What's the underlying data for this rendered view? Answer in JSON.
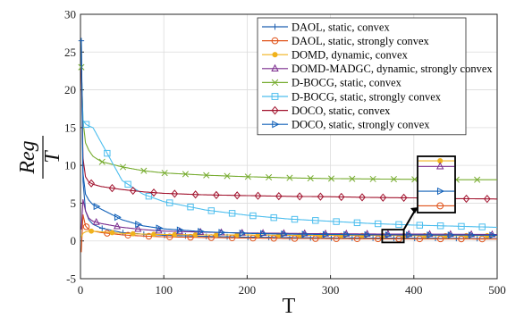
{
  "chart_data": {
    "type": "line",
    "xlabel": "T",
    "ylabel_numerator": "Reg",
    "ylabel_denominator": "T",
    "xlim": [
      0,
      500
    ],
    "ylim": [
      -5,
      30
    ],
    "x_ticks": [
      0,
      100,
      200,
      300,
      400,
      500
    ],
    "y_ticks": [
      -5,
      0,
      5,
      10,
      15,
      20,
      25,
      30
    ],
    "grid": true,
    "legend_position": "top-right",
    "series": [
      {
        "name": "DAOL, static, convex",
        "color": "#1f5fb0",
        "marker": "plus",
        "x": [
          1,
          3,
          6,
          10,
          15,
          25,
          50,
          75,
          100,
          150,
          200,
          250,
          300,
          350,
          400,
          450,
          500
        ],
        "y": [
          26.5,
          8,
          4,
          2.8,
          2.2,
          1.7,
          1.1,
          0.9,
          0.75,
          0.6,
          0.5,
          0.45,
          0.4,
          0.38,
          0.35,
          0.33,
          0.3
        ]
      },
      {
        "name": "DAOL, static, strongly convex",
        "color": "#e0531a",
        "marker": "circle",
        "x": [
          1,
          3,
          6,
          10,
          15,
          25,
          50,
          75,
          100,
          150,
          200,
          250,
          300,
          350,
          400,
          450,
          500
        ],
        "y": [
          -1.5,
          3.5,
          2,
          1.5,
          1.3,
          1.1,
          0.8,
          0.65,
          0.55,
          0.45,
          0.38,
          0.33,
          0.3,
          0.28,
          0.27,
          0.26,
          0.25
        ]
      },
      {
        "name": "DOMD, dynamic, convex",
        "color": "#f0b21c",
        "marker": "dot",
        "x": [
          1,
          3,
          6,
          10,
          15,
          25,
          50,
          75,
          100,
          150,
          200,
          250,
          300,
          350,
          400,
          450,
          500
        ],
        "y": [
          0.5,
          1.0,
          1.2,
          1.3,
          1.3,
          1.2,
          1.0,
          0.9,
          0.85,
          0.8,
          0.78,
          0.75,
          0.73,
          0.72,
          0.7,
          0.7,
          0.7
        ]
      },
      {
        "name": "DOMD-MADGC, dynamic, strongly convex",
        "color": "#7b2d8e",
        "marker": "triangle-up",
        "x": [
          1,
          3,
          6,
          10,
          15,
          25,
          50,
          75,
          100,
          150,
          200,
          250,
          300,
          350,
          400,
          450,
          500
        ],
        "y": [
          1.5,
          5.5,
          4,
          3,
          2.6,
          2.3,
          1.8,
          1.5,
          1.3,
          1.15,
          1.05,
          1.0,
          0.95,
          0.92,
          0.9,
          0.88,
          0.85
        ]
      },
      {
        "name": "D-BOCG, static, convex",
        "color": "#77ac30",
        "marker": "x",
        "x": [
          1,
          3,
          6,
          10,
          15,
          25,
          50,
          75,
          100,
          150,
          200,
          250,
          300,
          350,
          400,
          450,
          500
        ],
        "y": [
          23,
          16,
          13,
          12,
          11.2,
          10.5,
          9.8,
          9.3,
          9.0,
          8.7,
          8.5,
          8.35,
          8.25,
          8.2,
          8.15,
          8.1,
          8.1
        ]
      },
      {
        "name": "D-BOCG, static, strongly convex",
        "color": "#4dbeee",
        "marker": "square",
        "x": [
          1,
          3,
          6,
          10,
          15,
          25,
          50,
          75,
          100,
          150,
          200,
          250,
          300,
          350,
          400,
          450,
          500
        ],
        "y": [
          23,
          16,
          15.5,
          15.2,
          15.0,
          13,
          8,
          6.2,
          5.2,
          4.1,
          3.4,
          2.9,
          2.6,
          2.3,
          2.1,
          1.95,
          1.8
        ]
      },
      {
        "name": "DOCO, static, convex",
        "color": "#a2142f",
        "marker": "diamond",
        "x": [
          1,
          3,
          6,
          10,
          15,
          25,
          50,
          75,
          100,
          150,
          200,
          250,
          300,
          350,
          400,
          450,
          500
        ],
        "y": [
          23,
          11,
          8.5,
          7.8,
          7.5,
          7.2,
          6.8,
          6.5,
          6.3,
          6.1,
          6.0,
          5.9,
          5.85,
          5.75,
          5.7,
          5.6,
          5.55
        ]
      },
      {
        "name": "DOCO, static, strongly convex",
        "color": "#1060b8",
        "marker": "triangle-right",
        "x": [
          1,
          3,
          6,
          10,
          15,
          25,
          50,
          75,
          100,
          150,
          200,
          250,
          300,
          350,
          400,
          450,
          500
        ],
        "y": [
          26.8,
          9,
          6.2,
          5.4,
          4.8,
          4.2,
          2.8,
          2.0,
          1.6,
          1.2,
          1.0,
          0.9,
          0.85,
          0.8,
          0.78,
          0.77,
          0.75
        ]
      }
    ],
    "inset_zoom": {
      "source_x": [
        362,
        388
      ],
      "source_y": [
        -0.2,
        1.5
      ],
      "markers_shown": [
        {
          "series": "DOMD, dynamic, convex",
          "marker": "dot",
          "level": 0.92
        },
        {
          "series": "DOMD-MADGC, dynamic, strongly convex",
          "marker": "triangle-up",
          "level": 0.82
        },
        {
          "series": "DOCO, static, strongly convex",
          "marker": "triangle-right",
          "level": 0.38
        },
        {
          "series": "DAOL, static, strongly convex",
          "marker": "circle",
          "level": 0.12
        }
      ]
    }
  }
}
